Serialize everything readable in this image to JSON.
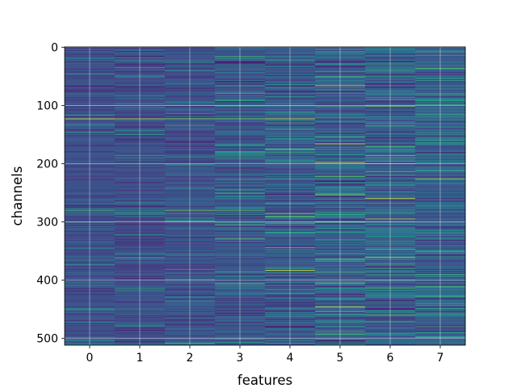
{
  "chart_data": {
    "type": "heatmap",
    "title": "",
    "xlabel": "features",
    "ylabel": "channels",
    "x_categories": [
      "0",
      "1",
      "2",
      "3",
      "4",
      "5",
      "6",
      "7"
    ],
    "y_ticks": [
      "0",
      "100",
      "200",
      "300",
      "400",
      "500"
    ],
    "y_range": [
      0,
      511
    ],
    "rows": 512,
    "columns": 8,
    "colormap": "viridis",
    "grid": true,
    "colorbar": false,
    "highlights": [
      {
        "column": 0,
        "channel": 123,
        "level": 0.95
      },
      {
        "column": 1,
        "channel": 123,
        "level": 0.92
      },
      {
        "column": 2,
        "channel": 123,
        "level": 0.85
      },
      {
        "column": 3,
        "channel": 123,
        "level": 0.8
      },
      {
        "column": 4,
        "channel": 123,
        "level": 0.95
      },
      {
        "column": 0,
        "channel": 280,
        "level": 0.7
      },
      {
        "column": 2,
        "channel": 280,
        "level": 0.8
      },
      {
        "column": 3,
        "channel": 280,
        "level": 0.75
      },
      {
        "column": 4,
        "channel": 290,
        "level": 0.8
      },
      {
        "column": 4,
        "channel": 383,
        "level": 0.95
      },
      {
        "column": 5,
        "channel": 66,
        "level": 0.95
      },
      {
        "column": 5,
        "channel": 166,
        "level": 0.95
      },
      {
        "column": 5,
        "channel": 198,
        "level": 0.95
      },
      {
        "column": 5,
        "channel": 252,
        "level": 0.85
      },
      {
        "column": 5,
        "channel": 300,
        "level": 0.8
      },
      {
        "column": 5,
        "channel": 446,
        "level": 0.9
      },
      {
        "column": 6,
        "channel": 102,
        "level": 0.8
      },
      {
        "column": 6,
        "channel": 186,
        "level": 0.85
      },
      {
        "column": 6,
        "channel": 200,
        "level": 0.8
      },
      {
        "column": 6,
        "channel": 260,
        "level": 0.95
      },
      {
        "column": 6,
        "channel": 295,
        "level": 0.9
      },
      {
        "column": 6,
        "channel": 460,
        "level": 0.8
      },
      {
        "column": 7,
        "channel": 80,
        "level": 0.7
      },
      {
        "column": 7,
        "channel": 226,
        "level": 0.85
      }
    ]
  }
}
